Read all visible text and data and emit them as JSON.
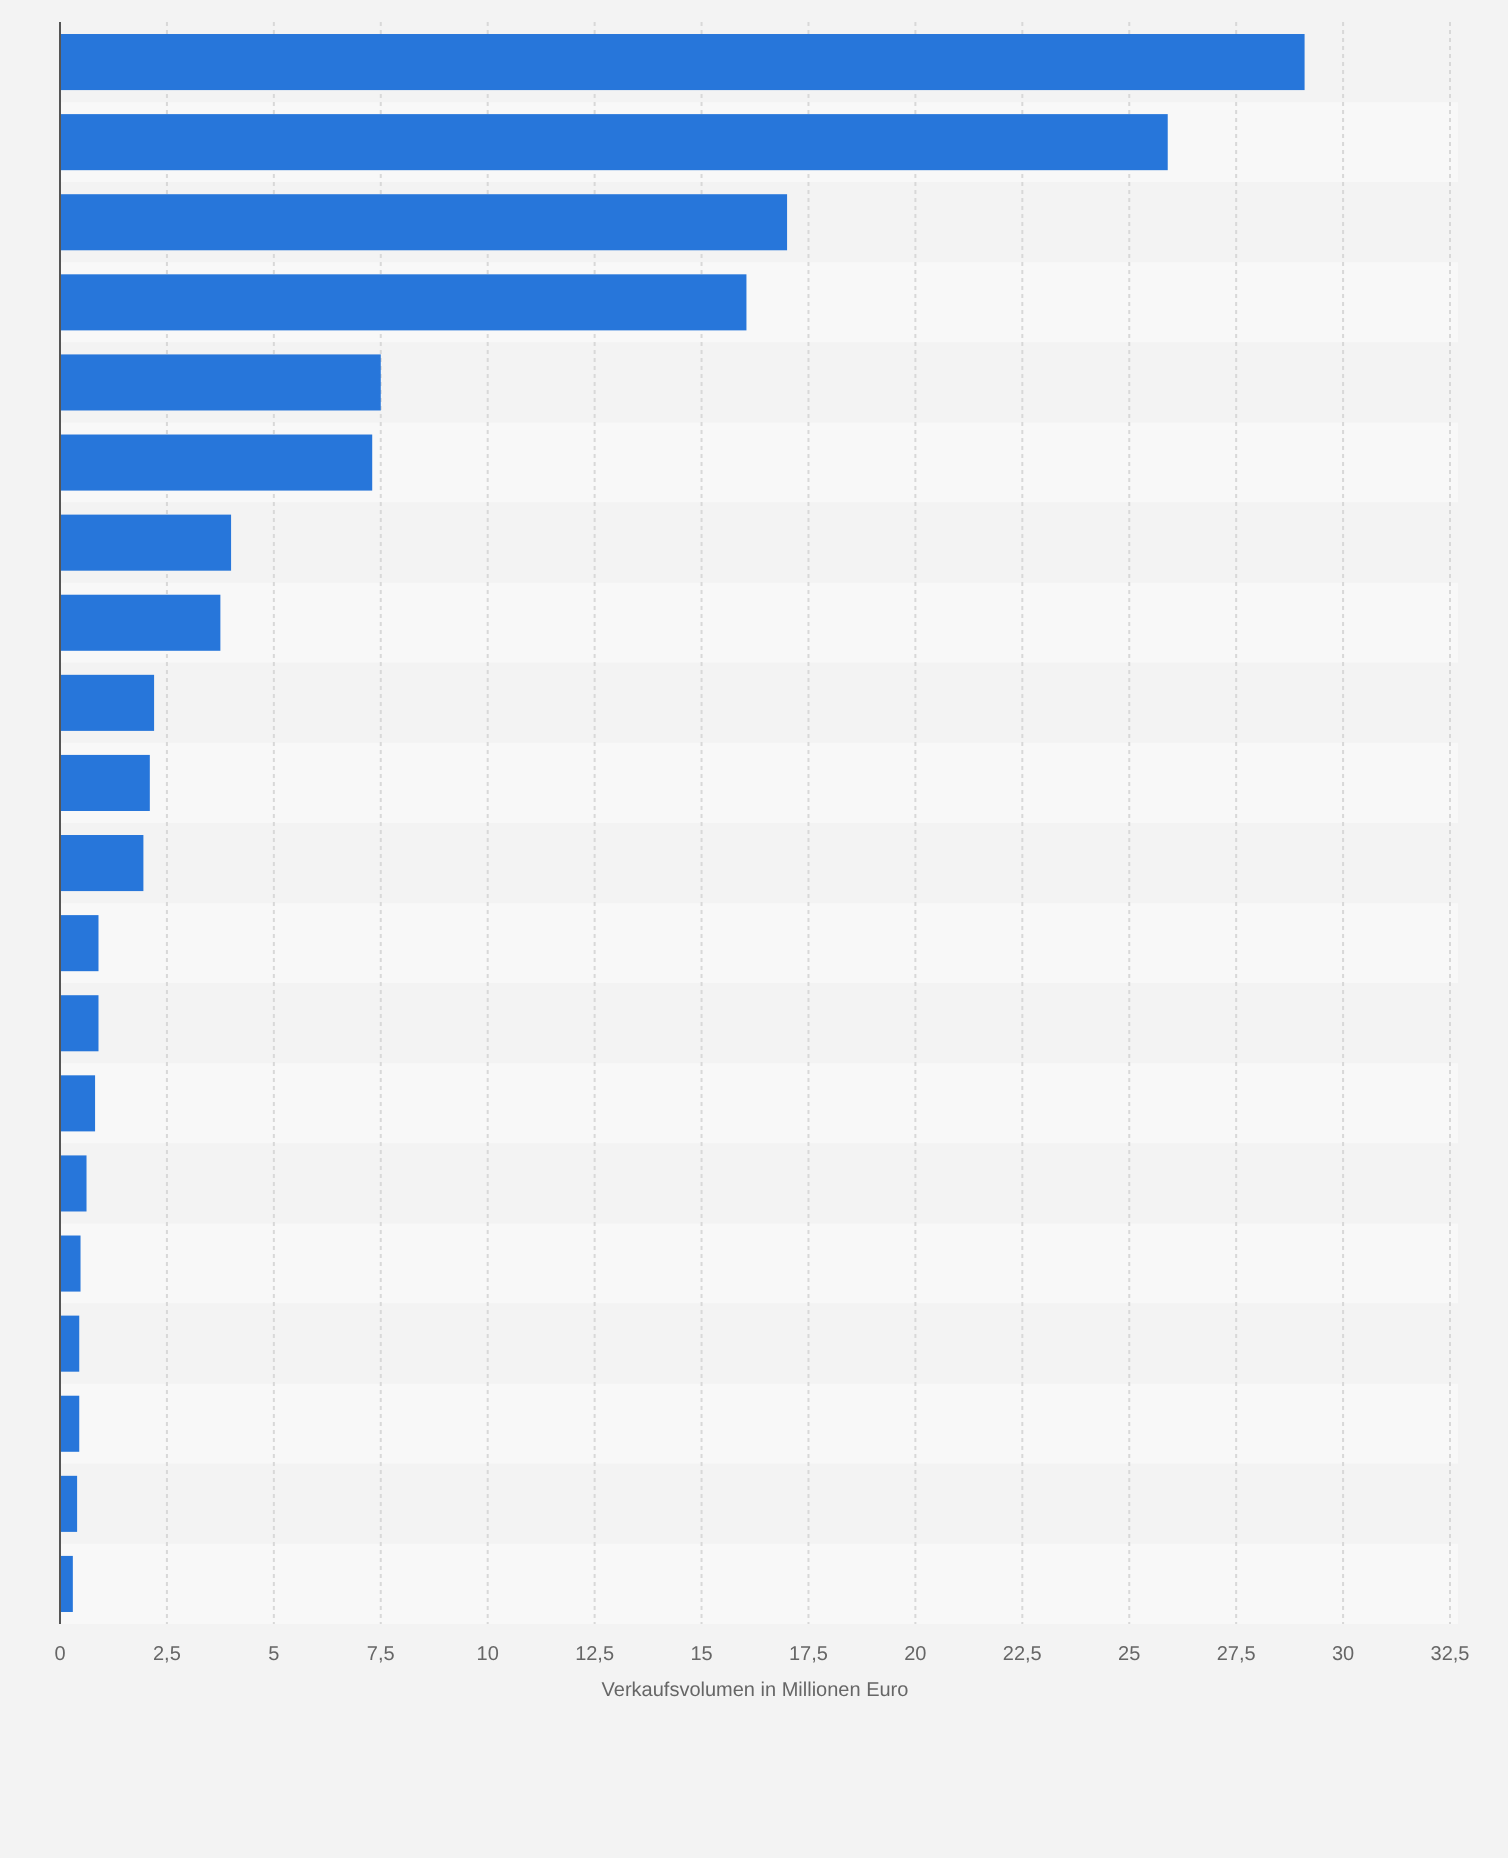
{
  "chart_data": {
    "type": "bar",
    "orientation": "horizontal",
    "xlabel": "Verkaufsvolumen in Millionen Euro",
    "categories": [
      null,
      null,
      null,
      null,
      null,
      null,
      null,
      null,
      null,
      null,
      null,
      null,
      null,
      null,
      null,
      null,
      null,
      null,
      null,
      null
    ],
    "values": [
      29.1,
      25.9,
      17.0,
      16.05,
      7.5,
      7.3,
      4.0,
      3.75,
      2.2,
      2.1,
      1.95,
      0.9,
      0.9,
      0.82,
      0.62,
      0.48,
      0.45,
      0.45,
      0.4,
      0.3
    ],
    "color": "#2776da",
    "xlim": [
      0,
      32.5
    ],
    "xticks": [
      0,
      {
        "value": 2.5,
        "label": "2,5"
      },
      5,
      {
        "value": 7.5,
        "label": "7,5"
      },
      10,
      {
        "value": 12.5,
        "label": "12,5"
      },
      15,
      {
        "value": 17.5,
        "label": "17,5"
      },
      20,
      {
        "value": 22.5,
        "label": "22,5"
      },
      25,
      {
        "value": 27.5,
        "label": "27,5"
      },
      30,
      {
        "value": 32.5,
        "label": "32,5"
      }
    ],
    "grid": "x",
    "tick_labels": "x"
  }
}
